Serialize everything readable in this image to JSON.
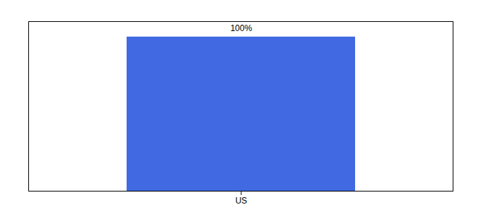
{
  "chart_data": {
    "type": "bar",
    "categories": [
      "US"
    ],
    "values": [
      100
    ],
    "value_labels": [
      "100%"
    ],
    "color": "#4169e1",
    "ylim": [
      0,
      110
    ],
    "yticks": [],
    "data_labels": true,
    "tick_labels": "x"
  }
}
